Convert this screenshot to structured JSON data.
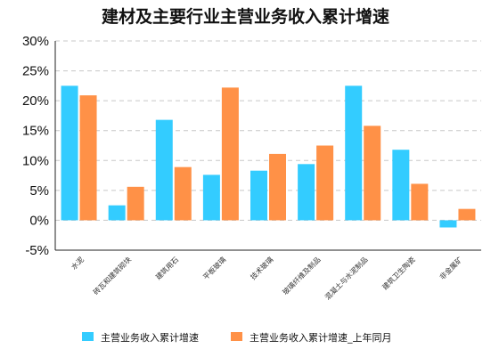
{
  "chart_data": {
    "type": "bar",
    "title": "建材及主要行业主营业务收入累计增速",
    "xlabel": "",
    "ylabel": "",
    "ylim": [
      -5,
      30
    ],
    "ytick_step": 5,
    "ytick_labels": [
      "-5%",
      "0%",
      "5%",
      "10%",
      "15%",
      "20%",
      "25%",
      "30%"
    ],
    "grid": true,
    "legend_position": "bottom",
    "categories": [
      "水泥",
      "砖瓦和建筑砌块",
      "建筑用石",
      "平板玻璃",
      "技术玻璃",
      "玻璃纤维及制品",
      "混凝土与水泥制品",
      "建筑卫生陶瓷",
      "非金属矿"
    ],
    "series": [
      {
        "name": "主营业务收入累计增速",
        "color": "#33ccff",
        "values": [
          22.5,
          2.5,
          16.8,
          7.6,
          8.3,
          9.4,
          22.5,
          11.8,
          -1.2
        ]
      },
      {
        "name": "主营业务收入累计增速_上年同月",
        "color": "#ff9147",
        "values": [
          20.9,
          5.6,
          8.9,
          22.2,
          11.1,
          12.5,
          15.8,
          6.1,
          1.9
        ]
      }
    ]
  }
}
